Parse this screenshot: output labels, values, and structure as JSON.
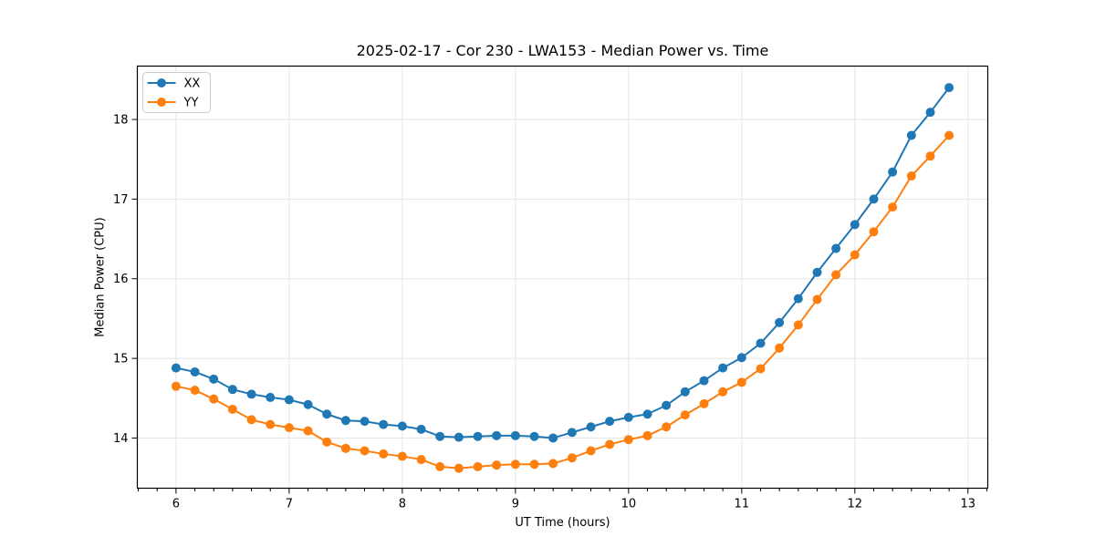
{
  "figure": {
    "title": "2025-02-17 - Cor 230 - LWA153 - Median Power vs. Time",
    "xlabel": "UT Time (hours)",
    "ylabel": "Median Power (CPU)"
  },
  "chart_data": {
    "type": "line",
    "title": "2025-02-17 - Cor 230 - LWA153 - Median Power vs. Time",
    "xlabel": "UT Time (hours)",
    "ylabel": "Median Power (CPU)",
    "x": [
      6.0,
      6.167,
      6.333,
      6.5,
      6.667,
      6.833,
      7.0,
      7.167,
      7.333,
      7.5,
      7.667,
      7.833,
      8.0,
      8.167,
      8.333,
      8.5,
      8.667,
      8.833,
      9.0,
      9.167,
      9.333,
      9.5,
      9.667,
      9.833,
      10.0,
      10.167,
      10.333,
      10.5,
      10.667,
      10.833,
      11.0,
      11.167,
      11.333,
      11.5,
      11.667,
      11.833,
      12.0,
      12.167,
      12.333,
      12.5,
      12.667,
      12.833
    ],
    "series": [
      {
        "name": "XX",
        "color": "#1f77b4",
        "values": [
          14.88,
          14.83,
          14.74,
          14.61,
          14.55,
          14.51,
          14.48,
          14.42,
          14.3,
          14.22,
          14.21,
          14.17,
          14.15,
          14.11,
          14.02,
          14.01,
          14.02,
          14.03,
          14.03,
          14.02,
          14.0,
          14.07,
          14.14,
          14.21,
          14.26,
          14.3,
          14.41,
          14.58,
          14.72,
          14.88,
          15.01,
          15.19,
          15.45,
          15.75,
          16.08,
          16.38,
          16.68,
          17.0,
          17.34,
          17.8,
          18.09,
          18.4
        ]
      },
      {
        "name": "YY",
        "color": "#ff7f0e",
        "values": [
          14.65,
          14.6,
          14.49,
          14.36,
          14.23,
          14.17,
          14.13,
          14.09,
          13.95,
          13.87,
          13.84,
          13.8,
          13.77,
          13.73,
          13.64,
          13.62,
          13.64,
          13.66,
          13.67,
          13.67,
          13.68,
          13.75,
          13.84,
          13.92,
          13.98,
          14.03,
          14.14,
          14.29,
          14.43,
          14.58,
          14.7,
          14.87,
          15.13,
          15.42,
          15.74,
          16.05,
          16.3,
          16.59,
          16.9,
          17.29,
          17.54,
          17.8
        ]
      }
    ],
    "xlim": [
      5.658,
      13.175
    ],
    "ylim": [
      13.37,
      18.67
    ],
    "xticks": [
      6,
      7,
      8,
      9,
      10,
      11,
      12,
      13
    ],
    "yticks": [
      14,
      15,
      16,
      17,
      18
    ],
    "x_minor_step": 0.1666667,
    "grid": true,
    "grid_color": "#e5e5e5",
    "spine_color": "#000000",
    "legend_position": "upper left",
    "marker": "o",
    "marker_radius": 5,
    "line_width": 2
  }
}
